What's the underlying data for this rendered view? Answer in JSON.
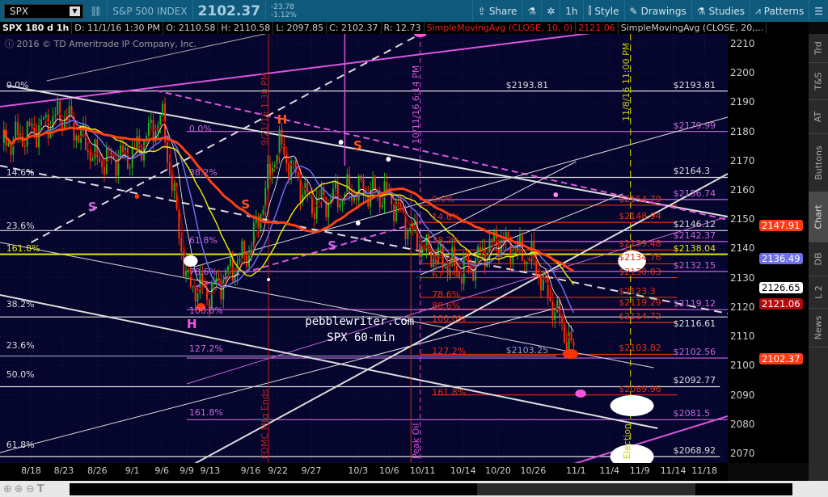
{
  "toolbar": {
    "symbol": "SPX",
    "description": "S&P 500 INDEX",
    "last": "2102.37",
    "change": "-23.78",
    "change_pct": "-1.12%",
    "share": "Share",
    "timeframe": "1h",
    "style": "Style",
    "drawings": "Drawings",
    "studies": "Studies",
    "patterns": "Patterns"
  },
  "info_bar": {
    "chart_label": "SPX 180 d 1h",
    "date": "D: 11/1/16 1:30 PM",
    "open": "O: 2110.58",
    "high": "H: 2110.58",
    "low": "L: 2097.85",
    "close": "C: 2102.37",
    "range": "R: 12.73",
    "sma10": "SimpleMovingAvg (CLOSE, 10, 0)",
    "sma10_value": "2121.06",
    "sma20": "SimpleMovingAvg (CLOSE, 20,..."
  },
  "copyright": "2016 © TD Ameritrade IP Company, Inc.",
  "side_tabs": [
    "Trd",
    "T&S",
    "AT",
    "Buttons",
    "Chart",
    "DB",
    "L 2",
    "News"
  ],
  "active_tab": "Chart",
  "colors": {
    "background": "#05052e",
    "up": "#1fb51f",
    "down": "#ff3300",
    "fib_white": "#dddddd",
    "fib_magenta": "#cc66dd",
    "fib_orange": "#e03010",
    "yellow": "#e8e800"
  },
  "chart_data": {
    "type": "line",
    "yaxis": {
      "ticks": [
        2070,
        2080,
        2090,
        2100,
        2110,
        2120,
        2130,
        2140,
        2150,
        2160,
        2170,
        2180,
        2190,
        2200,
        2210
      ],
      "range": [
        2066,
        2212
      ]
    },
    "xaxis": {
      "ticks": [
        "8/18",
        "8/23",
        "8/26",
        "9/1",
        "9/6",
        "9/9",
        "9/13",
        "9/16",
        "9/22",
        "9/27",
        "10/3",
        "10/6",
        "10/11",
        "10/14",
        "10/20",
        "10/26",
        "11/1",
        "11/4",
        "11/9",
        "11/14",
        "11/18"
      ]
    },
    "approx_close": [
      [
        "8/18",
        2180
      ],
      [
        "8/23",
        2186
      ],
      [
        "8/26",
        2170
      ],
      [
        "9/1",
        2172
      ],
      [
        "9/6",
        2185
      ],
      [
        "9/9",
        2128
      ],
      [
        "9/13",
        2125
      ],
      [
        "9/16",
        2140
      ],
      [
        "9/22",
        2176
      ],
      [
        "9/27",
        2155
      ],
      [
        "10/3",
        2160
      ],
      [
        "10/6",
        2158
      ],
      [
        "10/11",
        2140
      ],
      [
        "10/14",
        2132
      ],
      [
        "10/20",
        2143
      ],
      [
        "10/26",
        2136
      ],
      [
        "11/1",
        2102.37
      ]
    ],
    "price_tags": [
      {
        "value": "2147.91",
        "bg": "#ff3b14",
        "fg": "#fff"
      },
      {
        "value": "2136.49",
        "bg": "#6f6fe8",
        "fg": "#fff"
      },
      {
        "value": "2126.65",
        "bg": "#ffffff",
        "fg": "#000"
      },
      {
        "value": "2121.06",
        "bg": "#b00c0c",
        "fg": "#fff"
      },
      {
        "value": "2102.37",
        "bg": "#ff3b14",
        "fg": "#fff"
      }
    ],
    "levels": [
      {
        "price": 2193.81,
        "label": "$2193.81",
        "color": "#dddddd"
      },
      {
        "price": 2179.99,
        "label": "$2179.99",
        "color": "#cc66dd"
      },
      {
        "price": 2164.3,
        "label": "$2164.3",
        "color": "#dddddd"
      },
      {
        "price": 2156.74,
        "label": "$2156.74",
        "color": "#cc66dd"
      },
      {
        "price": 2154.79,
        "label": "$2154.79",
        "color": "#e03010"
      },
      {
        "price": 2148.94,
        "label": "$2148.94",
        "color": "#e03010"
      },
      {
        "price": 2146.12,
        "label": "$2146.12",
        "color": "#dddddd"
      },
      {
        "price": 2142.37,
        "label": "$2142.37",
        "color": "#cc66dd"
      },
      {
        "price": 2139.48,
        "label": "$2139.48",
        "color": "#e03010"
      },
      {
        "price": 2138.04,
        "label": "$2138.04",
        "color": "#e8e800"
      },
      {
        "price": 2134.76,
        "label": "$2134.76",
        "color": "#e03010"
      },
      {
        "price": 2132.15,
        "label": "$2132.15",
        "color": "#cc66dd"
      },
      {
        "price": 2130.03,
        "label": "$2130.03",
        "color": "#e03010"
      },
      {
        "price": 2123.3,
        "label": "$2123.3",
        "color": "#e03010"
      },
      {
        "price": 2119.29,
        "label": "$2119.29",
        "color": "#e03010"
      },
      {
        "price": 2119.12,
        "label": "$2119.12",
        "color": "#cc66dd"
      },
      {
        "price": 2116.61,
        "label": "$2116.61",
        "color": "#dddddd"
      },
      {
        "price": 2114.72,
        "label": "$2114.72",
        "color": "#e03010"
      },
      {
        "price": 2103.25,
        "label": "$2103.25",
        "color": "#9999cc"
      },
      {
        "price": 2103.82,
        "label": "$2103.82",
        "color": "#e03010"
      },
      {
        "price": 2102.56,
        "label": "$2102.56",
        "color": "#cc66dd"
      },
      {
        "price": 2092.77,
        "label": "$2092.77",
        "color": "#dddddd"
      },
      {
        "price": 2089.96,
        "label": "$2089.96",
        "color": "#e03010"
      },
      {
        "price": 2081.5,
        "label": "$2081.5",
        "color": "#cc66dd"
      },
      {
        "price": 2068.92,
        "label": "$2068.92",
        "color": "#dddddd"
      }
    ],
    "fib_white": [
      "0.0%",
      "14.6%",
      "23.6%",
      "161.8%",
      "38.2%",
      "23.6%",
      "50.0%",
      "61.8%"
    ],
    "fib_magenta": [
      "0.0%",
      "38.2%",
      "61.8%",
      "78.6%",
      "100.0%",
      "127.2%",
      "161.8%"
    ],
    "fib_orange": [
      "0.0%",
      "14.6%",
      "38.2%",
      "50.0%",
      "61.8%",
      "78.6%",
      "88.6%",
      "100.0%",
      "127.2%",
      "161.8%"
    ],
    "annotations": {
      "h1": "H",
      "h2": "H",
      "s1": "S",
      "s2": "S",
      "s3": "S",
      "s4": "S",
      "site": "pebblewriter.com",
      "timeframe_note": "SPX 60-min",
      "v1": "9/21/16 1:30 PM",
      "v2": "10/11/16 6:14 PM",
      "v3": "11/8/16 11:00 PM",
      "fomc": "FOMC Mtg Ends",
      "peak_oil": "Peak Oil",
      "election": "Election"
    }
  }
}
